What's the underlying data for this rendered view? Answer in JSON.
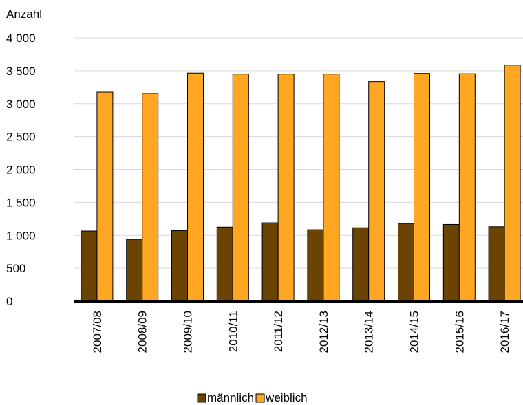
{
  "chart_data": {
    "type": "bar",
    "ylabel": "Anzahl",
    "ylim": [
      0,
      4000
    ],
    "yticks": [
      {
        "value": 0,
        "label": "0"
      },
      {
        "value": 500,
        "label": "500"
      },
      {
        "value": 1000,
        "label": "1 000"
      },
      {
        "value": 1500,
        "label": "1 500"
      },
      {
        "value": 2000,
        "label": "2 000"
      },
      {
        "value": 2500,
        "label": "2 500"
      },
      {
        "value": 3000,
        "label": "3 000"
      },
      {
        "value": 3500,
        "label": "3 500"
      },
      {
        "value": 4000,
        "label": "4 000"
      }
    ],
    "categories": [
      "2007/08",
      "2008/09",
      "2009/10",
      "2010/11",
      "2011/12",
      "2012/13",
      "2013/14",
      "2014/15",
      "2015/16",
      "2016/17"
    ],
    "series": [
      {
        "name": "männlich",
        "color": "#6b4302",
        "values": [
          1065,
          940,
          1070,
          1125,
          1190,
          1085,
          1115,
          1180,
          1165,
          1130
        ]
      },
      {
        "name": "weiblich",
        "color": "#ffa623",
        "values": [
          3175,
          3155,
          3465,
          3450,
          3450,
          3450,
          3335,
          3460,
          3455,
          3585
        ]
      }
    ],
    "grid": true,
    "legend": "bottom-center"
  }
}
